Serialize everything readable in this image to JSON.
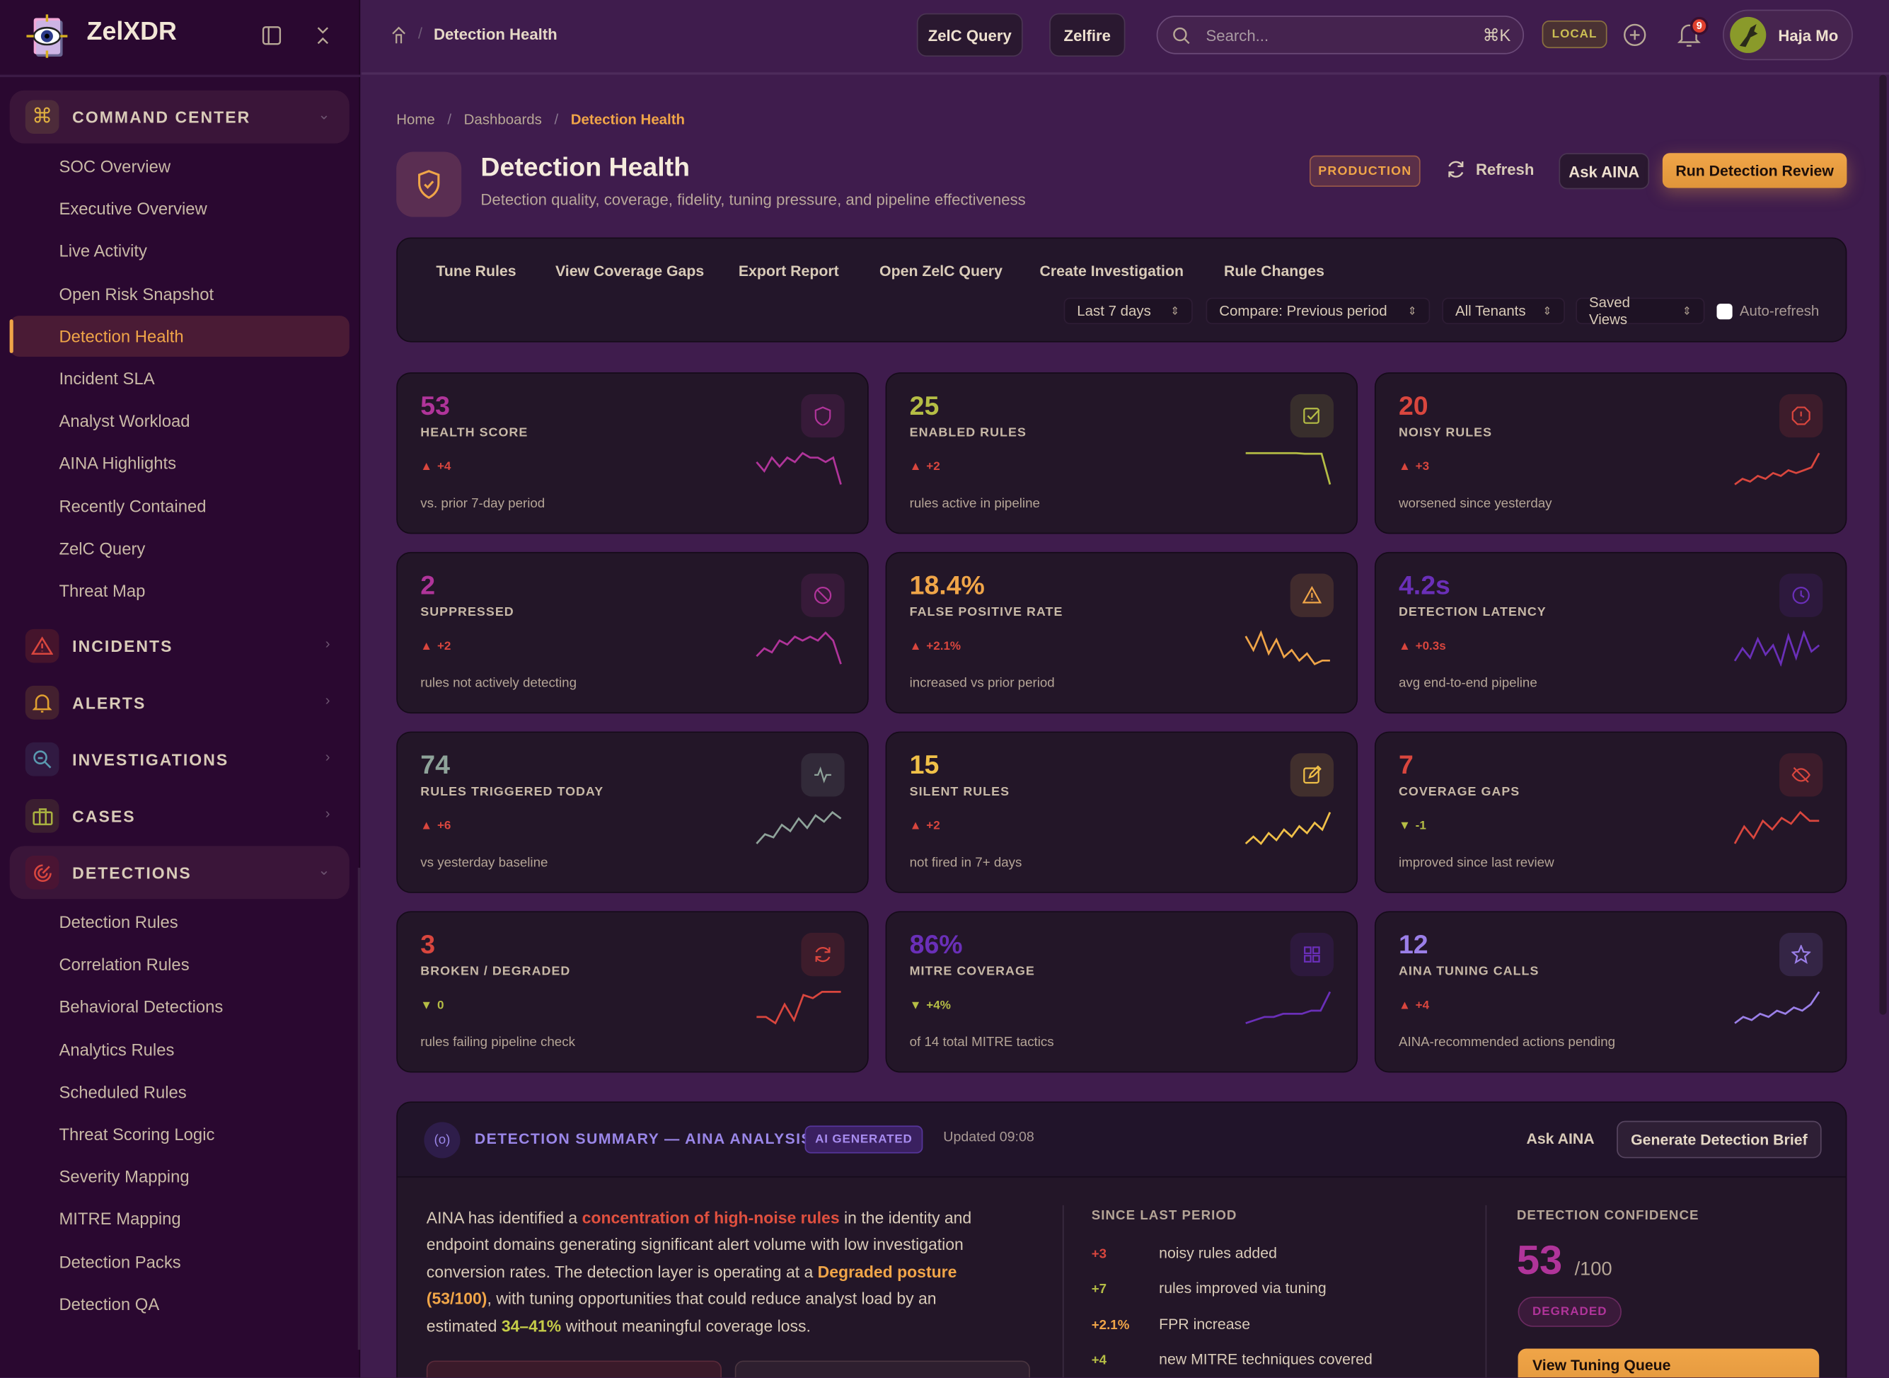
{
  "app": {
    "name": "ZelXDR"
  },
  "colors": {
    "accent": "#f0a548",
    "magenta": "#b0349a",
    "lime": "#b5bd45",
    "red": "#d9463e",
    "purple": "#6a2fb8",
    "lavender": "#9b7fe8",
    "slate": "#8fa39a"
  },
  "sidebar": {
    "groups": [
      {
        "label": "COMMAND CENTER",
        "icon": "command-icon",
        "open": true,
        "items": [
          "SOC Overview",
          "Executive Overview",
          "Live Activity",
          "Open Risk Snapshot",
          "Detection Health",
          "Incident SLA",
          "Analyst Workload",
          "AINA Highlights",
          "Recently Contained",
          "ZelC Query",
          "Threat Map"
        ],
        "active": "Detection Health"
      },
      {
        "label": "INCIDENTS",
        "icon": "alert-triangle-icon"
      },
      {
        "label": "ALERTS",
        "icon": "bell-icon"
      },
      {
        "label": "INVESTIGATIONS",
        "icon": "search-zoom-icon"
      },
      {
        "label": "CASES",
        "icon": "briefcase-icon"
      },
      {
        "label": "DETECTIONS",
        "icon": "target-icon",
        "open": true,
        "items": [
          "Detection Rules",
          "Correlation Rules",
          "Behavioral Detections",
          "Analytics Rules",
          "Scheduled Rules",
          "Threat Scoring Logic",
          "Severity Mapping",
          "MITRE Mapping",
          "Detection Packs",
          "Detection QA"
        ]
      }
    ]
  },
  "topbar": {
    "page": "Detection Health",
    "zelc_query": "ZelC Query",
    "zelfire": "Zelfire",
    "search_placeholder": "Search...",
    "search_shortcut": "⌘K",
    "env": "LOCAL",
    "notifications": "9",
    "user": "Haja Mo"
  },
  "breadcrumb": [
    "Home",
    "Dashboards",
    "Detection Health"
  ],
  "header": {
    "title": "Detection Health",
    "subtitle": "Detection quality, coverage, fidelity, tuning pressure, and pipeline effectiveness",
    "env_badge": "PRODUCTION",
    "refresh": "Refresh",
    "ask": "Ask AINA",
    "run": "Run Detection Review"
  },
  "toolbar": {
    "links": [
      "Tune Rules",
      "View Coverage Gaps",
      "Export Report",
      "Open ZelC Query",
      "Create Investigation",
      "Rule Changes"
    ],
    "selects": [
      "Last 7 days",
      "Compare: Previous period",
      "All Tenants",
      "Saved Views"
    ],
    "auto_refresh": {
      "label": "Auto-refresh",
      "checked": false
    }
  },
  "kpis": [
    {
      "value": "53",
      "label": "HEALTH SCORE",
      "delta": "+4",
      "dir": "up",
      "sub": "vs. prior 7-day period",
      "color": "#b0349a",
      "icon": "shield-icon",
      "spark": [
        5,
        3,
        6,
        4,
        6,
        5,
        7,
        6,
        6,
        5,
        6,
        0
      ]
    },
    {
      "value": "25",
      "label": "ENABLED RULES",
      "delta": "+2",
      "dir": "up",
      "sub": "rules active in pipeline",
      "color": "#b5bd45",
      "icon": "checkbox-icon",
      "spark": [
        10,
        10,
        10,
        10,
        10,
        10,
        10,
        9.8,
        9.8,
        9.8,
        0
      ]
    },
    {
      "value": "20",
      "label": "NOISY RULES",
      "delta": "+3",
      "dir": "up",
      "sub": "worsened since yesterday",
      "color": "#d9463e",
      "icon": "alert-octagon-icon",
      "spark": [
        1,
        3,
        2,
        4,
        3,
        5,
        4,
        6,
        5,
        6,
        7,
        12
      ]
    },
    {
      "value": "2",
      "label": "SUPPRESSED",
      "delta": "+2",
      "dir": "up",
      "sub": "rules not actively detecting",
      "color": "#b0349a",
      "icon": "ban-icon",
      "spark": [
        2,
        4,
        3,
        6,
        5,
        7,
        6,
        7,
        6,
        8,
        6,
        0
      ]
    },
    {
      "value": "18.4%",
      "label": "FALSE POSITIVE RATE",
      "delta": "+2.1%",
      "dir": "up",
      "sub": "increased vs prior period",
      "color": "#f0a548",
      "icon": "warning-icon",
      "spark": [
        8,
        4,
        9,
        3,
        7,
        2,
        4,
        1,
        3,
        0,
        1,
        1
      ]
    },
    {
      "value": "4.2s",
      "label": "DETECTION LATENCY",
      "delta": "+0.3s",
      "dir": "up",
      "sub": "avg end-to-end pipeline",
      "color": "#6a2fb8",
      "icon": "clock-icon",
      "spark": [
        1,
        5,
        2,
        8,
        3,
        6,
        0,
        9,
        2,
        10,
        4,
        6
      ]
    },
    {
      "value": "74",
      "label": "RULES TRIGGERED TODAY",
      "delta": "+6",
      "dir": "up",
      "sub": "vs yesterday baseline",
      "color": "#8fa39a",
      "icon": "activity-icon",
      "spark": [
        0,
        3,
        2,
        6,
        4,
        8,
        5,
        9,
        7,
        10,
        8
      ]
    },
    {
      "value": "15",
      "label": "SILENT RULES",
      "delta": "+2",
      "dir": "up",
      "sub": "not fired in 7+ days",
      "color": "#f0c048",
      "icon": "edit-icon",
      "spark": [
        1,
        3,
        1,
        4,
        2,
        5,
        3,
        6,
        4,
        7,
        5,
        10
      ]
    },
    {
      "value": "7",
      "label": "COVERAGE GAPS",
      "delta": "-1",
      "dir": "down",
      "sub": "improved since last review",
      "color": "#d9463e",
      "icon": "eye-off-icon",
      "spark": [
        0,
        6,
        2,
        8,
        5,
        9,
        7,
        11,
        8,
        8
      ]
    },
    {
      "value": "3",
      "label": "BROKEN / DEGRADED",
      "delta": "0",
      "dir": "down",
      "sub": "rules failing pipeline check",
      "color": "#d9463e",
      "icon": "refresh-icon",
      "spark": [
        2,
        2,
        0,
        6,
        1,
        9,
        8,
        10,
        10,
        10
      ]
    },
    {
      "value": "86%",
      "label": "MITRE COVERAGE",
      "delta": "+4%",
      "dir": "down",
      "sub": "of 14 total MITRE tactics",
      "color": "#6a2fb8",
      "icon": "grid-icon",
      "spark": [
        0,
        1,
        2,
        2,
        3,
        3,
        3,
        4,
        4,
        10
      ]
    },
    {
      "value": "12",
      "label": "AINA TUNING CALLS",
      "delta": "+4",
      "dir": "up",
      "sub": "AINA-recommended actions pending",
      "color": "#9b7fe8",
      "icon": "star-icon",
      "spark": [
        0,
        2,
        1,
        3,
        2,
        4,
        3,
        5,
        4,
        6,
        10
      ]
    }
  ],
  "summary": {
    "title": "DETECTION SUMMARY — AINA ANALYSIS",
    "badge": "AI GENERATED",
    "updated": "Updated 09:08",
    "ask": "Ask AINA",
    "generate": "Generate Detection Brief",
    "paragraph": [
      {
        "t": "AINA has identified a "
      },
      {
        "t": "concentration of high-noise rules",
        "c": "#e0503f"
      },
      {
        "t": " in the identity and endpoint domains generating significant alert volume with low investigation conversion rates. The detection layer is operating at a "
      },
      {
        "t": "Degraded posture (53/100)",
        "c": "#f0a548"
      },
      {
        "t": ", with tuning opportunities that could reduce analyst load by an estimated "
      },
      {
        "t": "34–41%",
        "c": "#c5cc48"
      },
      {
        "t": " without meaningful coverage loss."
      }
    ],
    "since_title": "SINCE LAST PERIOD",
    "changes": [
      {
        "v": "+3",
        "t": "noisy rules added",
        "c": "#d9463e"
      },
      {
        "v": "+7",
        "t": "rules improved via tuning",
        "c": "#b5bd45"
      },
      {
        "v": "+2.1%",
        "t": "FPR increase",
        "c": "#f0a548"
      },
      {
        "v": "+4",
        "t": "new MITRE techniques covered",
        "c": "#b5bd45"
      }
    ],
    "confidence_title": "DETECTION CONFIDENCE",
    "confidence": "53",
    "confidence_max": "/100",
    "confidence_state": "DEGRADED",
    "tuning_queue": "View Tuning Queue"
  }
}
